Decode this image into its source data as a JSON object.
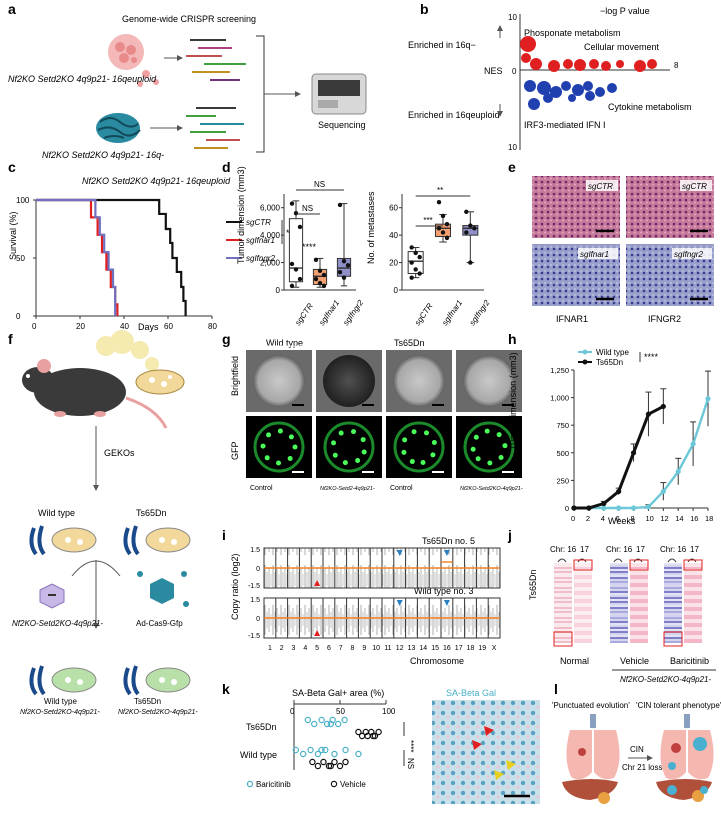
{
  "panels": {
    "a": "a",
    "b": "b",
    "c": "c",
    "d": "d",
    "e": "e",
    "f": "f",
    "g": "g",
    "h": "h",
    "i": "i",
    "j": "j",
    "k": "k",
    "l": "l"
  },
  "panel_a": {
    "title": "Genome-wide CRISPR screening",
    "top_cell_label": "Nf2KO Setd2KO 4q9p21- 16qeuploid",
    "bottom_cell_label": "Nf2KO Setd2KO 4q9p21- 16q-",
    "sequencing_label": "Sequencing"
  },
  "panel_b": {
    "axis_title": "−log P value",
    "nes_label": "NES",
    "enriched_top": "Enriched in 16q−",
    "enriched_bottom": "Enriched in 16qeuploid",
    "top_tick": "10",
    "bottom_tick": "10",
    "zero_tick": "0",
    "right_tick": "8",
    "terms": [
      "Phosponate metabolism",
      "Cellular movement",
      "Cytokine metabolism",
      "IRF3-mediated IFN I"
    ],
    "colors": {
      "up": "#e02020",
      "down": "#2040b0"
    }
  },
  "chart_data": [
    {
      "type": "line",
      "title": "Nf2KO Setd2KO 4q9p21- 16qeuploid",
      "xlabel": "Days",
      "ylabel": "Survival (%)",
      "xlim": [
        0,
        80
      ],
      "ylim": [
        0,
        100
      ],
      "xticks": [
        "0",
        "20",
        "40",
        "60",
        "80"
      ],
      "yticks": [
        "0",
        "50",
        "100"
      ],
      "significance": [
        "****",
        "****"
      ],
      "series": [
        {
          "name": "sgCTR",
          "color": "#111111",
          "points": [
            [
              0,
              100
            ],
            [
              53,
              100
            ],
            [
              56,
              88
            ],
            [
              59,
              75
            ],
            [
              61,
              63
            ],
            [
              62,
              50
            ],
            [
              64,
              38
            ],
            [
              66,
              25
            ],
            [
              67,
              13
            ],
            [
              68,
              0
            ]
          ]
        },
        {
          "name": "sgIfnar1",
          "color": "#e02020",
          "points": [
            [
              0,
              100
            ],
            [
              22,
              100
            ],
            [
              25,
              85
            ],
            [
              28,
              70
            ],
            [
              30,
              55
            ],
            [
              32,
              40
            ],
            [
              34,
              25
            ],
            [
              36,
              10
            ],
            [
              37,
              0
            ]
          ]
        },
        {
          "name": "sgIfngr2",
          "color": "#7070c0",
          "points": [
            [
              0,
              100
            ],
            [
              25,
              100
            ],
            [
              27,
              85
            ],
            [
              29,
              70
            ],
            [
              31,
              55
            ],
            [
              33,
              40
            ],
            [
              35,
              25
            ],
            [
              36,
              0
            ]
          ]
        }
      ]
    },
    {
      "type": "box",
      "ylabel": "Tumor dimension (mm3)",
      "ylim": [
        0,
        7000
      ],
      "yticks": [
        "0",
        "2,000",
        "4,000",
        "6,000"
      ],
      "categories": [
        "sgCTR",
        "sgIfnar1",
        "sgIfngr2"
      ],
      "significance": [
        "NS",
        "NS"
      ],
      "boxes": [
        {
          "name": "sgCTR",
          "color": "#ffffff",
          "min": 200,
          "q1": 600,
          "median": 1600,
          "q3": 5200,
          "max": 6500,
          "points": [
            6300,
            5600,
            4600,
            1900,
            1500,
            800,
            300
          ]
        },
        {
          "name": "sgIfnar1",
          "color": "#f4a070",
          "min": 200,
          "q1": 400,
          "median": 1000,
          "q3": 1500,
          "max": 2300,
          "points": [
            2200,
            1400,
            1100,
            800,
            500,
            300
          ]
        },
        {
          "name": "sgIfngr2",
          "color": "#9090c8",
          "min": 300,
          "q1": 1000,
          "median": 1600,
          "q3": 2300,
          "max": 6300,
          "points": [
            6200,
            2100,
            1800,
            1300,
            900
          ]
        }
      ]
    },
    {
      "type": "box",
      "ylabel": "No. of metastases",
      "ylim": [
        0,
        70
      ],
      "yticks": [
        "0",
        "20",
        "40",
        "60"
      ],
      "categories": [
        "sgCTR",
        "sgIfnar1",
        "sgIfngr2"
      ],
      "significance": [
        "***",
        "**"
      ],
      "boxes": [
        {
          "name": "sgCTR",
          "color": "#ffffff",
          "min": 9,
          "q1": 12,
          "median": 21,
          "q3": 28,
          "max": 31,
          "points": [
            31,
            27,
            24,
            20,
            15,
            12,
            9
          ]
        },
        {
          "name": "sgIfnar1",
          "color": "#f4a070",
          "min": 35,
          "q1": 39,
          "median": 45,
          "q3": 48,
          "max": 55,
          "points": [
            64,
            54,
            48,
            45,
            42,
            38
          ]
        },
        {
          "name": "sgIfngr2",
          "color": "#9090c8",
          "min": 20,
          "q1": 40,
          "median": 45,
          "q3": 47,
          "max": 57,
          "points": [
            57,
            47,
            45,
            42,
            20
          ]
        }
      ]
    },
    {
      "type": "line",
      "xlabel": "Weeks",
      "ylabel": "Tumor dimension (mm3)",
      "xlim": [
        0,
        18
      ],
      "ylim": [
        0,
        1250
      ],
      "xticks": [
        "0",
        "2",
        "4",
        "6",
        "8",
        "10",
        "12",
        "14",
        "16",
        "18"
      ],
      "yticks": [
        "0",
        "250",
        "500",
        "750",
        "1,000",
        "1,250"
      ],
      "significance": "****",
      "series": [
        {
          "name": "Wild type",
          "color": "#6cc8d8",
          "points": [
            [
              0,
              0
            ],
            [
              2,
              0
            ],
            [
              4,
              0
            ],
            [
              6,
              0
            ],
            [
              8,
              0
            ],
            [
              10,
              10
            ],
            [
              12,
              150
            ],
            [
              14,
              330
            ],
            [
              16,
              580
            ],
            [
              18,
              990
            ]
          ],
          "err": [
            0,
            0,
            0,
            0,
            0,
            20,
            80,
            120,
            200,
            250
          ]
        },
        {
          "name": "Ts65Dn",
          "color": "#111111",
          "points": [
            [
              0,
              0
            ],
            [
              2,
              0
            ],
            [
              4,
              40
            ],
            [
              6,
              150
            ],
            [
              8,
              500
            ],
            [
              10,
              850
            ],
            [
              12,
              920
            ]
          ],
          "err": [
            0,
            0,
            20,
            30,
            80,
            200,
            160
          ]
        }
      ]
    },
    {
      "type": "scatter",
      "title": "SA-Beta Gal+ area (%)",
      "xlim": [
        0,
        100
      ],
      "xticks": [
        "0",
        "50",
        "100"
      ],
      "categories": [
        "Ts65Dn",
        "Wild type"
      ],
      "significance": [
        "****",
        "NS"
      ],
      "series": [
        {
          "name": "Baricitinib",
          "color": "#4ab0c8"
        },
        {
          "name": "Vehicle",
          "color": "#111111"
        }
      ]
    }
  ],
  "panel_e": {
    "labels": [
      "sgCTR",
      "sgCTR",
      "sgIfnar1",
      "sgIfngr2"
    ],
    "columns": [
      "IFNAR1",
      "IFNGR2"
    ]
  },
  "panel_f": {
    "gekos": "GEKOs",
    "wild_type": "Wild type",
    "ts65dn": "Ts65Dn",
    "genotype": "Nf2KO-Setd2KO-4q9p21-",
    "vector": "Ad-Cas9-Gfp",
    "bottom_wt": "Wild type",
    "bottom_ts": "Ts65Dn",
    "bottom_genotype": "Nf2KO-Setd2KO-4q9p21-"
  },
  "panel_g": {
    "wild_type": "Wild type",
    "ts65dn": "Ts65Dn",
    "row1": "Brightfield",
    "row2": "GFP",
    "captions": [
      "Control",
      "Nf2KO-Setd2-4q9p21-",
      "Control",
      "Nf2KO-Setd2KO-4q9p21-"
    ]
  },
  "panel_i": {
    "top_title": "Ts65Dn no. 5",
    "bottom_title": "Wild type no. 3",
    "ylabel": "Copy ratio (log2)",
    "xlabel": "Chromosome",
    "yticks": [
      "1.5",
      "0",
      "-1.5"
    ],
    "chromosomes": [
      "1",
      "2",
      "3",
      "4",
      "5",
      "6",
      "7",
      "8",
      "9",
      "10",
      "11",
      "12",
      "13",
      "14",
      "15",
      "16",
      "17",
      "18",
      "19",
      "X"
    ]
  },
  "panel_j": {
    "ylabel": "Ts65Dn",
    "chr16": "Chr: 16",
    "chr17": "17",
    "groups": [
      "Normal",
      "Vehicle",
      "Baricitinib"
    ],
    "genotype": "Nf2KO-Setd2KO-4q9p21-"
  },
  "panel_k": {
    "image_label": "SA-Beta Gal"
  },
  "panel_l": {
    "left_title": "'Punctuated evolution'",
    "right_title": "'CIN tolerant phenotype'",
    "arrow_top": "CIN",
    "arrow_bottom": "Chr 21 loss"
  }
}
